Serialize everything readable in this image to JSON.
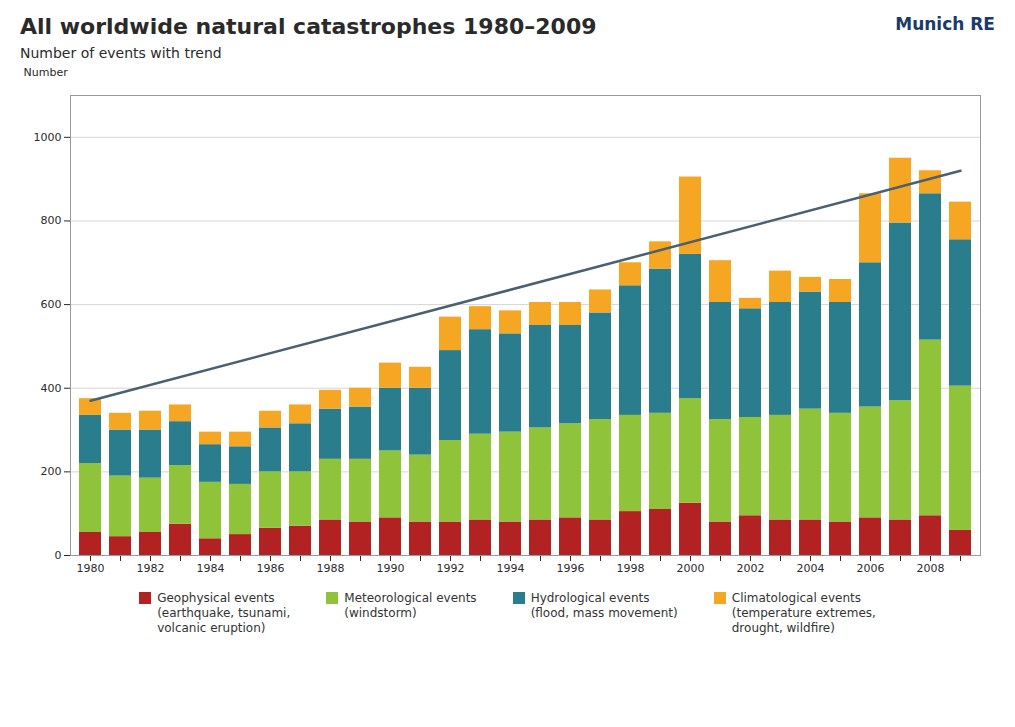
{
  "chart_data": {
    "type": "bar",
    "stacked": true,
    "title": "All worldwide natural catastrophes 1980–2009",
    "subtitle": "Number of events with trend",
    "ylabel": "Number",
    "categories": [
      1980,
      null,
      1982,
      null,
      1984,
      null,
      1986,
      null,
      1988,
      null,
      1990,
      null,
      1992,
      null,
      1994,
      null,
      1996,
      null,
      1998,
      null,
      2000,
      null,
      2002,
      null,
      2004,
      null,
      2006,
      null,
      2008,
      null
    ],
    "series": [
      {
        "name": "Geophysical events\n(earthquake, tsunami,\nvolcanic eruption)",
        "color": "#b22222",
        "values": [
          55,
          45,
          55,
          75,
          40,
          50,
          65,
          70,
          85,
          80,
          90,
          80,
          80,
          85,
          80,
          85,
          90,
          85,
          105,
          110,
          125,
          80,
          95,
          85,
          85,
          80,
          90,
          85,
          95,
          60
        ]
      },
      {
        "name": "Meteorological events\n(windstorm)",
        "color": "#8fc33a",
        "values": [
          165,
          145,
          130,
          140,
          135,
          120,
          135,
          130,
          145,
          150,
          160,
          160,
          195,
          205,
          215,
          220,
          225,
          240,
          230,
          230,
          250,
          245,
          235,
          250,
          265,
          260,
          265,
          285,
          420,
          345
        ]
      },
      {
        "name": "Hydrological events\n(flood,  mass movement)",
        "color": "#2a7d8c",
        "values": [
          115,
          110,
          115,
          105,
          90,
          90,
          105,
          115,
          120,
          125,
          150,
          160,
          215,
          250,
          235,
          245,
          235,
          255,
          310,
          345,
          345,
          280,
          260,
          270,
          280,
          265,
          345,
          425,
          350,
          350
        ]
      },
      {
        "name": "Climatological events\n(temperature extremes,\ndrought, wildfire)",
        "color": "#f5a623",
        "values": [
          40,
          40,
          45,
          40,
          30,
          35,
          40,
          45,
          45,
          45,
          60,
          50,
          80,
          55,
          55,
          55,
          55,
          55,
          55,
          65,
          185,
          100,
          25,
          75,
          35,
          55,
          165,
          155,
          55,
          90
        ]
      }
    ],
    "trend": {
      "start": 370,
      "end": 920,
      "color": "#4a6070"
    },
    "annotations": [
      {
        "text": "Munich RE",
        "color": "#1a3a6a"
      }
    ],
    "ylim": [
      0,
      1100
    ],
    "yticks": [
      0,
      200,
      400,
      600,
      800,
      1000
    ],
    "grid": true,
    "legend": "bottom"
  }
}
